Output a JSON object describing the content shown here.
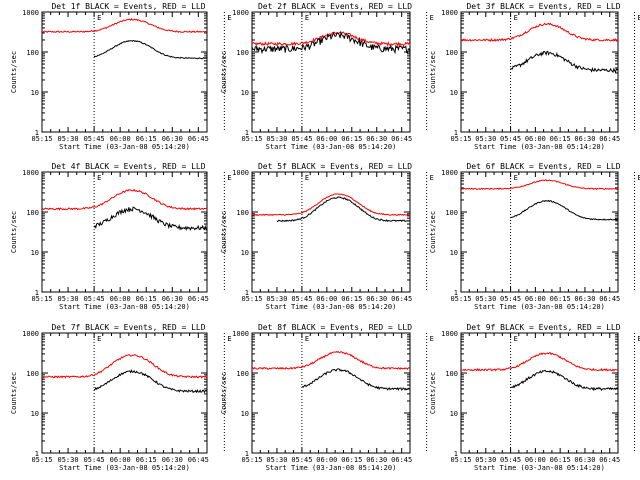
{
  "chart_data": {
    "type": "line",
    "yscale": "log",
    "ylim": [
      1,
      1000
    ],
    "ytick_labels": [
      "1",
      "10",
      "100",
      "1000"
    ],
    "xtick_labels": [
      "05:15",
      "05:30",
      "05:45",
      "06:00",
      "06:15",
      "06:30",
      "06:45"
    ],
    "xlabel": "Start Time (03-Jan-08 05:14:20)",
    "ylabel": "Counts/sec",
    "marker_labels": [
      "E",
      "E"
    ],
    "marker_times_min": [
      30,
      105
    ],
    "xrange_min": [
      0,
      95
    ],
    "series_colors": {
      "events": "#000000",
      "lld": "#ff0000"
    },
    "panels": [
      {
        "title": "Det 1f BLACK = Events, RED = LLD",
        "events": {
          "start": 30,
          "end": 105,
          "base": 70,
          "peak": 190,
          "noise": 0.03
        },
        "lld": {
          "start": 0,
          "end": 120,
          "base": 320,
          "peak": 650,
          "noise": 0.04
        }
      },
      {
        "title": "Det 2f BLACK = Events, RED = LLD",
        "events": {
          "start": 0,
          "end": 120,
          "base": 120,
          "peak": 260,
          "noise": 0.2
        },
        "lld": {
          "start": 0,
          "end": 120,
          "base": 160,
          "peak": 300,
          "noise": 0.08
        }
      },
      {
        "title": "Det 3f BLACK = Events, RED = LLD",
        "events": {
          "start": 30,
          "end": 105,
          "base": 35,
          "peak": 95,
          "noise": 0.1
        },
        "lld": {
          "start": 0,
          "end": 120,
          "base": 200,
          "peak": 500,
          "noise": 0.06
        }
      },
      {
        "title": "Det 4f BLACK = Events, RED = LLD",
        "events": {
          "start": 30,
          "end": 105,
          "base": 40,
          "peak": 120,
          "noise": 0.12
        },
        "lld": {
          "start": 0,
          "end": 120,
          "base": 120,
          "peak": 350,
          "noise": 0.05
        }
      },
      {
        "title": "Det 5f BLACK = Events, RED = LLD",
        "events": {
          "start": 15,
          "end": 120,
          "base": 60,
          "peak": 230,
          "noise": 0.04
        },
        "lld": {
          "start": 0,
          "end": 120,
          "base": 85,
          "peak": 280,
          "noise": 0.03
        }
      },
      {
        "title": "Det 6f BLACK = Events, RED = LLD",
        "events": {
          "start": 30,
          "end": 105,
          "base": 65,
          "peak": 190,
          "noise": 0.03
        },
        "lld": {
          "start": 0,
          "end": 120,
          "base": 380,
          "peak": 620,
          "noise": 0.03
        }
      },
      {
        "title": "Det 7f BLACK = Events, RED = LLD",
        "events": {
          "start": 30,
          "end": 105,
          "base": 35,
          "peak": 110,
          "noise": 0.06
        },
        "lld": {
          "start": 0,
          "end": 120,
          "base": 80,
          "peak": 280,
          "noise": 0.05
        }
      },
      {
        "title": "Det 8f BLACK = Events, RED = LLD",
        "events": {
          "start": 30,
          "end": 105,
          "base": 40,
          "peak": 120,
          "noise": 0.06
        },
        "lld": {
          "start": 0,
          "end": 120,
          "base": 130,
          "peak": 330,
          "noise": 0.05
        }
      },
      {
        "title": "Det 9f BLACK = Events, RED = LLD",
        "events": {
          "start": 30,
          "end": 105,
          "base": 40,
          "peak": 110,
          "noise": 0.07
        },
        "lld": {
          "start": 0,
          "end": 120,
          "base": 120,
          "peak": 310,
          "noise": 0.05
        }
      }
    ]
  }
}
